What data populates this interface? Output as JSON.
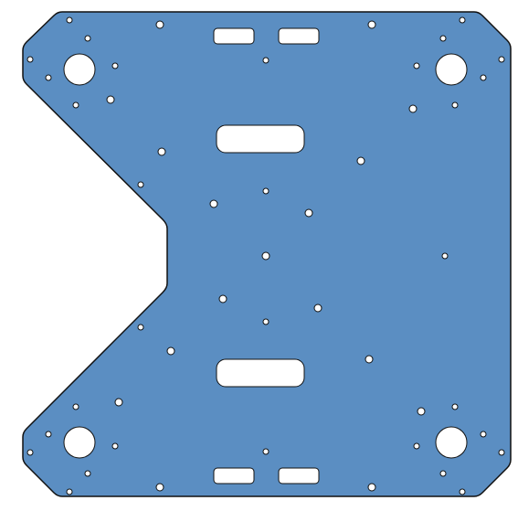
{
  "plate": {
    "fill_color": "#5b8ec2",
    "outline_color": "#111111",
    "hole_color": "#ffffff"
  },
  "features": {
    "large_holes": 4,
    "slots": 6,
    "small_holes": 56
  }
}
